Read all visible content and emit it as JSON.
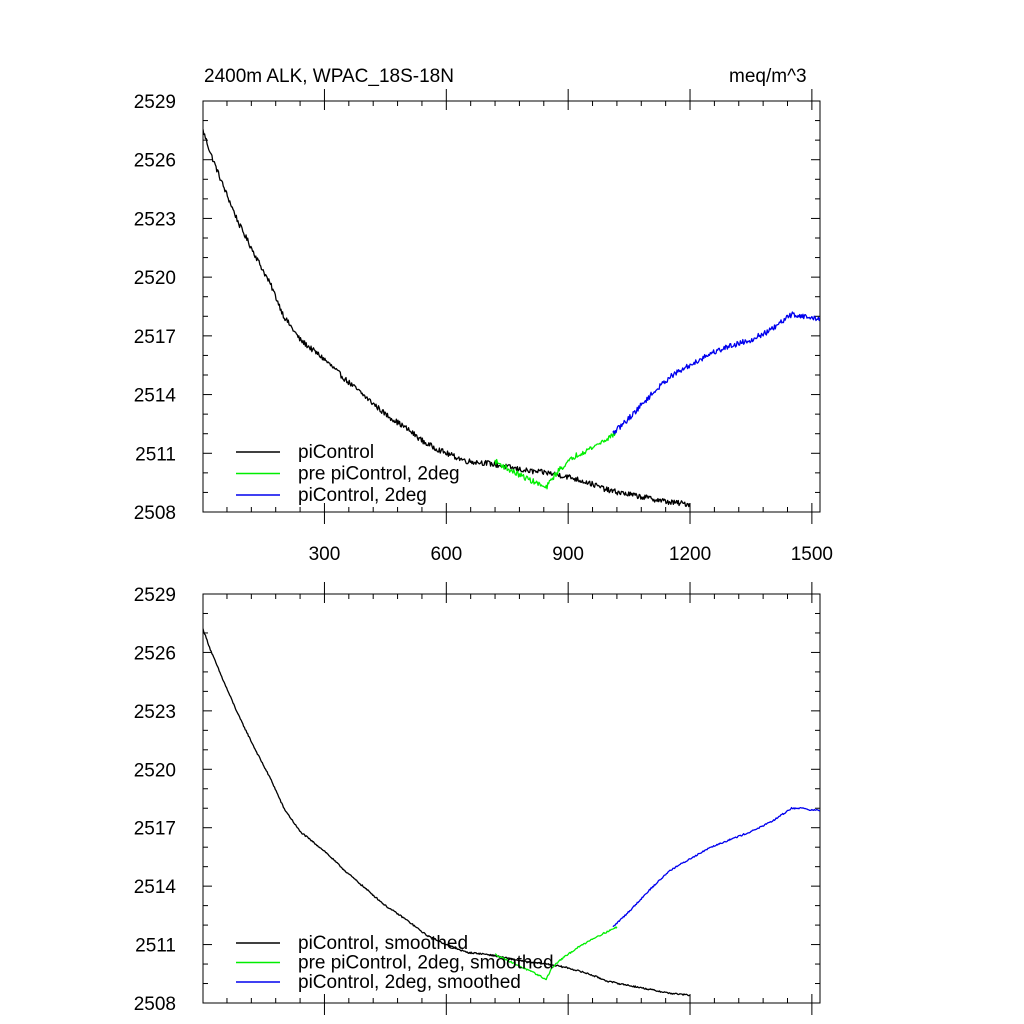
{
  "figure": {
    "title_left": "2400m ALK, WPAC_18S-18N",
    "title_right": "meq/m^3"
  },
  "colors": {
    "piControl": "#000000",
    "pre_piControl_2deg": "#00ee00",
    "piControl_2deg": "#0000ee"
  },
  "chart_data": [
    {
      "type": "line",
      "panel": "top",
      "title": "2400m ALK, WPAC_18S-18N",
      "units": "meq/m^3",
      "xlim": [
        1,
        1520
      ],
      "ylim": [
        2508,
        2529
      ],
      "x_ticks": [
        300,
        600,
        900,
        1200,
        1500
      ],
      "x_tick_labels": [
        "300",
        "600",
        "900",
        "1200",
        "1500"
      ],
      "y_ticks": [
        2508,
        2511,
        2514,
        2517,
        2520,
        2523,
        2526,
        2529
      ],
      "y_tick_labels": [
        "2508",
        "2511",
        "2514",
        "2517",
        "2520",
        "2523",
        "2526",
        "2529"
      ],
      "legend_position": "bottom-left",
      "noise": 0.14,
      "series": [
        {
          "name": "piControl",
          "color": "#000000",
          "x": [
            1,
            20,
            50,
            90,
            130,
            170,
            200,
            240,
            300,
            350,
            400,
            450,
            500,
            550,
            600,
            650,
            700,
            750,
            800,
            850,
            900,
            950,
            1000,
            1050,
            1100,
            1150,
            1200
          ],
          "y": [
            2527.5,
            2526.3,
            2524.7,
            2522.7,
            2521.1,
            2519.5,
            2518.0,
            2516.8,
            2515.8,
            2514.8,
            2513.9,
            2513.0,
            2512.3,
            2511.5,
            2511.0,
            2510.6,
            2510.5,
            2510.3,
            2510.1,
            2510.0,
            2509.8,
            2509.5,
            2509.1,
            2508.9,
            2508.7,
            2508.5,
            2508.4
          ]
        },
        {
          "name": "pre piControl, 2deg",
          "color": "#00ee00",
          "x": [
            720,
            760,
            800,
            830,
            845,
            860,
            880,
            920,
            960,
            1000,
            1020
          ],
          "y": [
            2510.6,
            2510.1,
            2509.7,
            2509.4,
            2509.2,
            2509.7,
            2510.2,
            2510.9,
            2511.3,
            2511.8,
            2512.1
          ]
        },
        {
          "name": "piControl, 2deg",
          "color": "#0000ee",
          "x": [
            1010,
            1050,
            1100,
            1150,
            1200,
            1250,
            1300,
            1350,
            1400,
            1450,
            1480,
            1500,
            1520
          ],
          "y": [
            2512.0,
            2512.8,
            2513.9,
            2514.9,
            2515.5,
            2516.1,
            2516.5,
            2516.8,
            2517.3,
            2518.1,
            2518.0,
            2517.9,
            2517.9
          ]
        }
      ]
    },
    {
      "type": "line",
      "panel": "bottom",
      "title": "",
      "xlim": [
        1,
        1520
      ],
      "ylim": [
        2508,
        2529
      ],
      "x_ticks": [
        300,
        600,
        900,
        1200,
        1500
      ],
      "x_tick_labels": [],
      "y_ticks": [
        2508,
        2511,
        2514,
        2517,
        2520,
        2523,
        2526,
        2529
      ],
      "y_tick_labels": [
        "2508",
        "2511",
        "2514",
        "2517",
        "2520",
        "2523",
        "2526",
        "2529"
      ],
      "legend_position": "bottom-left",
      "noise": 0.04,
      "series": [
        {
          "name": "piControl, smoothed",
          "color": "#000000",
          "x": [
            1,
            20,
            50,
            90,
            130,
            170,
            200,
            240,
            300,
            350,
            400,
            450,
            500,
            550,
            600,
            650,
            700,
            750,
            800,
            850,
            900,
            950,
            1000,
            1050,
            1100,
            1150,
            1200
          ],
          "y": [
            2527.2,
            2526.1,
            2524.6,
            2522.7,
            2521.0,
            2519.4,
            2518.0,
            2516.8,
            2515.8,
            2514.8,
            2513.9,
            2513.0,
            2512.3,
            2511.5,
            2511.0,
            2510.6,
            2510.5,
            2510.3,
            2510.1,
            2510.0,
            2509.8,
            2509.5,
            2509.1,
            2508.9,
            2508.7,
            2508.5,
            2508.4
          ]
        },
        {
          "name": "pre piControl, 2deg, smoothed",
          "color": "#00ee00",
          "x": [
            720,
            760,
            800,
            830,
            845,
            860,
            880,
            920,
            960,
            1000,
            1020
          ],
          "y": [
            2510.5,
            2510.1,
            2509.7,
            2509.4,
            2509.2,
            2509.8,
            2510.2,
            2510.8,
            2511.3,
            2511.7,
            2511.9
          ]
        },
        {
          "name": "piControl, 2deg, smoothed",
          "color": "#0000ee",
          "x": [
            1010,
            1050,
            1100,
            1150,
            1200,
            1250,
            1300,
            1350,
            1400,
            1450,
            1480,
            1500,
            1520
          ],
          "y": [
            2511.9,
            2512.7,
            2513.8,
            2514.8,
            2515.4,
            2516.0,
            2516.4,
            2516.8,
            2517.3,
            2518.0,
            2518.0,
            2517.9,
            2517.9
          ]
        }
      ]
    }
  ]
}
